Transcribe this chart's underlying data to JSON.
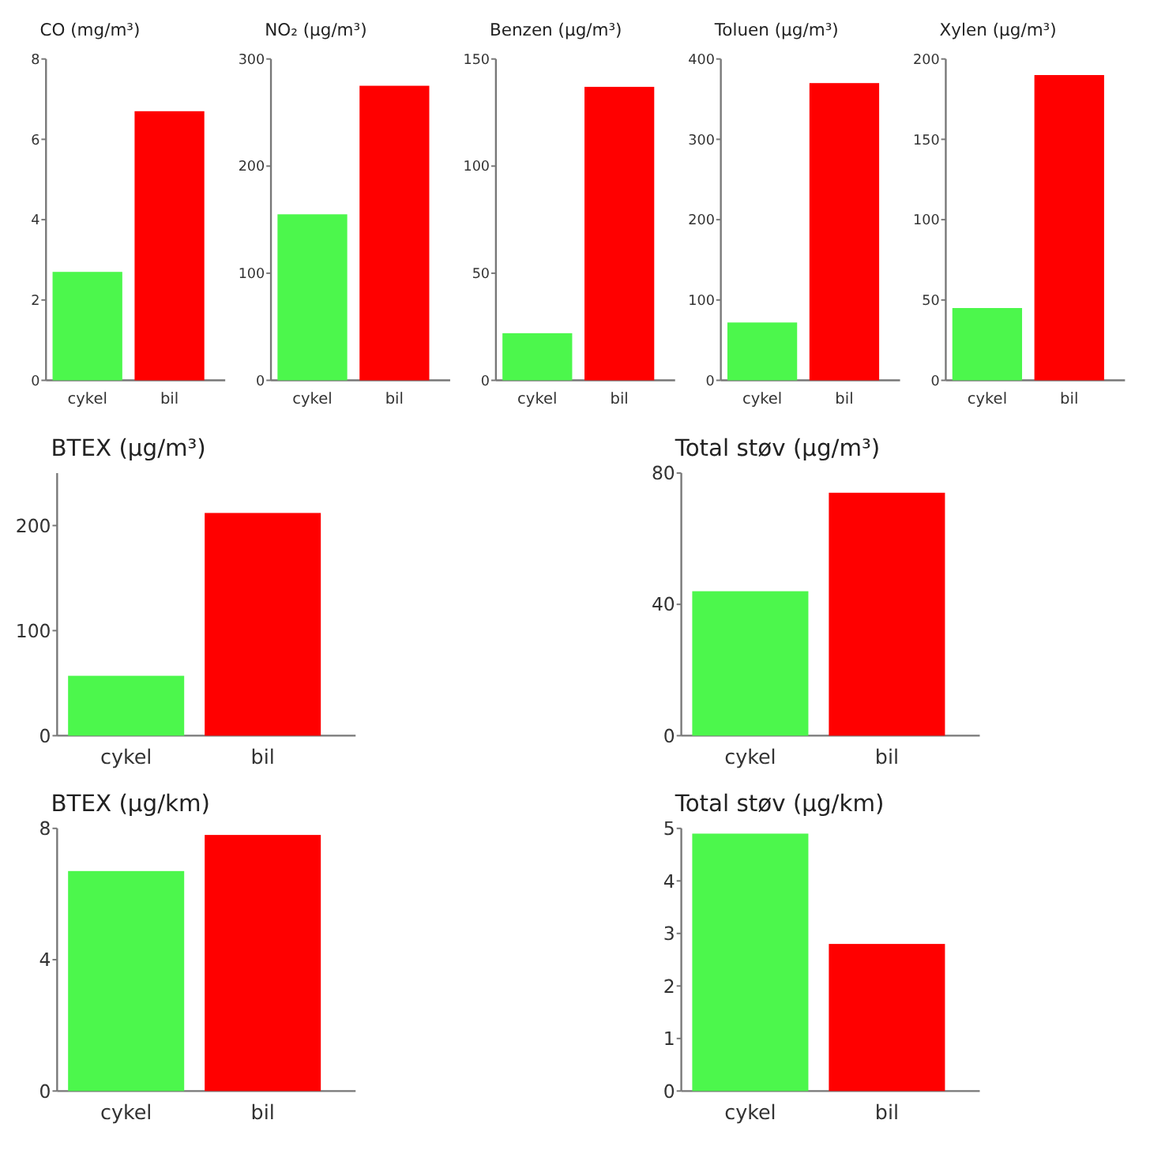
{
  "chart_data": [
    {
      "type": "bar",
      "title": "CO (mg/m³)",
      "categories": [
        "cykel",
        "bil"
      ],
      "values": [
        2.7,
        6.7
      ],
      "colors": [
        "#4cf74c",
        "#ff0000"
      ],
      "ylim": [
        0,
        8
      ],
      "yticks": [
        0,
        2,
        4,
        6,
        8
      ]
    },
    {
      "type": "bar",
      "title": "NO₂ (µg/m³)",
      "categories": [
        "cykel",
        "bil"
      ],
      "values": [
        155,
        275
      ],
      "colors": [
        "#4cf74c",
        "#ff0000"
      ],
      "ylim": [
        0,
        300
      ],
      "yticks": [
        0,
        100,
        200,
        300
      ]
    },
    {
      "type": "bar",
      "title": "Benzen (µg/m³)",
      "categories": [
        "cykel",
        "bil"
      ],
      "values": [
        22,
        137
      ],
      "colors": [
        "#4cf74c",
        "#ff0000"
      ],
      "ylim": [
        0,
        150
      ],
      "yticks": [
        0,
        50,
        100,
        150
      ]
    },
    {
      "type": "bar",
      "title": "Toluen (µg/m³)",
      "categories": [
        "cykel",
        "bil"
      ],
      "values": [
        72,
        370
      ],
      "colors": [
        "#4cf74c",
        "#ff0000"
      ],
      "ylim": [
        0,
        400
      ],
      "yticks": [
        0,
        100,
        200,
        300,
        400
      ]
    },
    {
      "type": "bar",
      "title": "Xylen (µg/m³)",
      "categories": [
        "cykel",
        "bil"
      ],
      "values": [
        45,
        190
      ],
      "colors": [
        "#4cf74c",
        "#ff0000"
      ],
      "ylim": [
        0,
        200
      ],
      "yticks": [
        0,
        50,
        100,
        150,
        200
      ]
    },
    {
      "type": "bar",
      "title": "BTEX (µg/m³)",
      "categories": [
        "cykel",
        "bil"
      ],
      "values": [
        57,
        212
      ],
      "colors": [
        "#4cf74c",
        "#ff0000"
      ],
      "ylim": [
        0,
        250
      ],
      "yticks": [
        0,
        100,
        200
      ]
    },
    {
      "type": "bar",
      "title": "Total støv (µg/m³)",
      "categories": [
        "cykel",
        "bil"
      ],
      "values": [
        44,
        74
      ],
      "colors": [
        "#4cf74c",
        "#ff0000"
      ],
      "ylim": [
        0,
        80
      ],
      "yticks": [
        0,
        40,
        80
      ]
    },
    {
      "type": "bar",
      "title": "BTEX (µg/km)",
      "categories": [
        "cykel",
        "bil"
      ],
      "values": [
        6.7,
        7.8
      ],
      "colors": [
        "#4cf74c",
        "#ff0000"
      ],
      "ylim": [
        0,
        8
      ],
      "yticks": [
        0,
        4,
        8
      ]
    },
    {
      "type": "bar",
      "title": "Total støv (µg/km)",
      "categories": [
        "cykel",
        "bil"
      ],
      "values": [
        4.9,
        2.8
      ],
      "colors": [
        "#4cf74c",
        "#ff0000"
      ],
      "ylim": [
        0,
        5
      ],
      "yticks": [
        0,
        1,
        2,
        3,
        4,
        5
      ]
    }
  ]
}
